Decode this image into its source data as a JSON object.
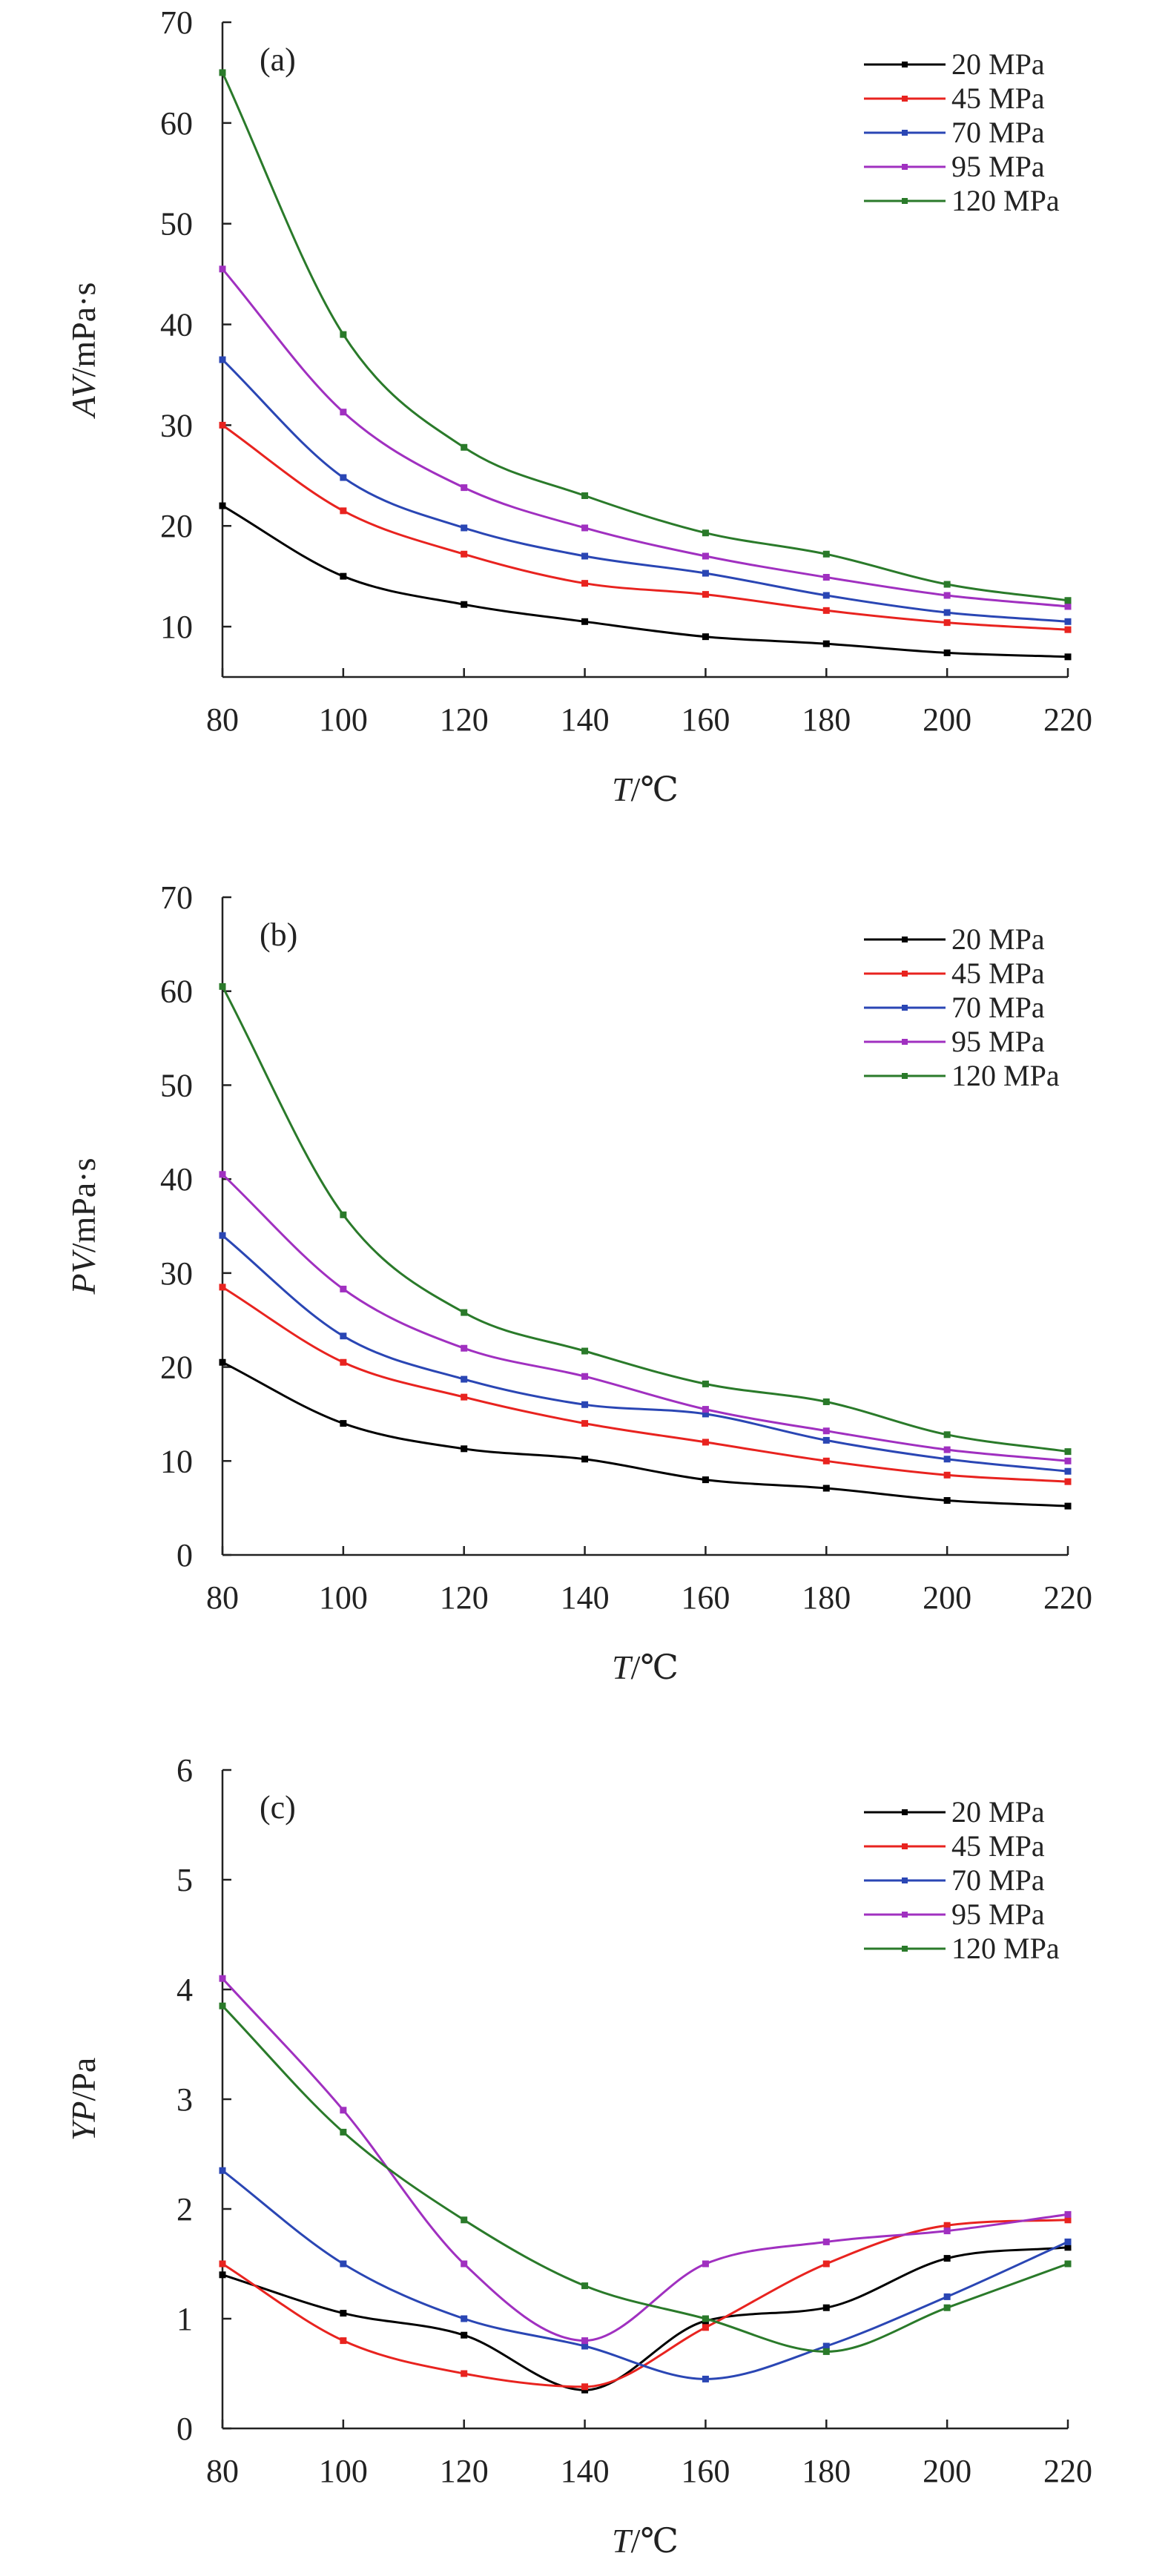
{
  "chart_data": [
    {
      "type": "line",
      "panel_label": "(a)",
      "ylabel_var": "AV",
      "ylabel_unit": "/mPa·s",
      "xlabel_var": "T",
      "xlabel_unit": "/℃",
      "x": [
        80,
        100,
        120,
        140,
        160,
        180,
        200,
        220
      ],
      "x_ticks": [
        "80",
        "100",
        "120",
        "140",
        "160",
        "180",
        "200",
        "220"
      ],
      "y_ticks": [
        "10",
        "20",
        "30",
        "40",
        "50",
        "60",
        "70"
      ],
      "xlim": [
        80,
        220
      ],
      "ylim": [
        5,
        70
      ],
      "legend_position": "top-right",
      "series": [
        {
          "name": "20 MPa",
          "color": "#000000",
          "values": [
            22,
            15,
            12.2,
            10.5,
            9,
            8.3,
            7.4,
            7
          ]
        },
        {
          "name": "45 MPa",
          "color": "#e8231f",
          "values": [
            30,
            21.5,
            17.2,
            14.3,
            13.2,
            11.6,
            10.4,
            9.7
          ]
        },
        {
          "name": "70 MPa",
          "color": "#2a46b4",
          "values": [
            36.5,
            24.8,
            19.8,
            17,
            15.3,
            13.1,
            11.4,
            10.5
          ]
        },
        {
          "name": "95 MPa",
          "color": "#a030c0",
          "values": [
            45.5,
            31.3,
            23.8,
            19.8,
            17,
            14.9,
            13.1,
            12
          ]
        },
        {
          "name": "120 MPa",
          "color": "#2a7a2a",
          "values": [
            65,
            39,
            27.8,
            23,
            19.3,
            17.2,
            14.2,
            12.6
          ]
        }
      ]
    },
    {
      "type": "line",
      "panel_label": "(b)",
      "ylabel_var": "PV",
      "ylabel_unit": "/mPa·s",
      "xlabel_var": "T",
      "xlabel_unit": "/℃",
      "x": [
        80,
        100,
        120,
        140,
        160,
        180,
        200,
        220
      ],
      "x_ticks": [
        "80",
        "100",
        "120",
        "140",
        "160",
        "180",
        "200",
        "220"
      ],
      "y_ticks": [
        "0",
        "10",
        "20",
        "30",
        "40",
        "50",
        "60",
        "70"
      ],
      "xlim": [
        80,
        220
      ],
      "ylim": [
        0,
        70
      ],
      "legend_position": "top-right",
      "series": [
        {
          "name": "20 MPa",
          "color": "#000000",
          "values": [
            20.5,
            14,
            11.3,
            10.2,
            8,
            7.1,
            5.8,
            5.2
          ]
        },
        {
          "name": "45 MPa",
          "color": "#e8231f",
          "values": [
            28.5,
            20.5,
            16.8,
            14,
            12,
            10,
            8.5,
            7.8
          ]
        },
        {
          "name": "70 MPa",
          "color": "#2a46b4",
          "values": [
            34,
            23.3,
            18.7,
            16,
            15,
            12.2,
            10.2,
            8.9
          ]
        },
        {
          "name": "95 MPa",
          "color": "#a030c0",
          "values": [
            40.5,
            28.3,
            22,
            19,
            15.5,
            13.2,
            11.2,
            10
          ]
        },
        {
          "name": "120 MPa",
          "color": "#2a7a2a",
          "values": [
            60.5,
            36.2,
            25.8,
            21.7,
            18.2,
            16.3,
            12.8,
            11
          ]
        }
      ]
    },
    {
      "type": "line",
      "panel_label": "(c)",
      "ylabel_var": "YP",
      "ylabel_unit": "/Pa",
      "xlabel_var": "T",
      "xlabel_unit": "/℃",
      "x": [
        80,
        100,
        120,
        140,
        160,
        180,
        200,
        220
      ],
      "x_ticks": [
        "80",
        "100",
        "120",
        "140",
        "160",
        "180",
        "200",
        "220"
      ],
      "y_ticks": [
        "0",
        "1",
        "2",
        "3",
        "4",
        "5",
        "6"
      ],
      "xlim": [
        80,
        220
      ],
      "ylim": [
        0,
        6
      ],
      "legend_position": "top-right",
      "series": [
        {
          "name": "20 MPa",
          "color": "#000000",
          "values": [
            1.4,
            1.05,
            0.85,
            0.35,
            0.98,
            1.1,
            1.55,
            1.65
          ]
        },
        {
          "name": "45 MPa",
          "color": "#e8231f",
          "values": [
            1.5,
            0.8,
            0.5,
            0.38,
            0.92,
            1.5,
            1.85,
            1.9
          ]
        },
        {
          "name": "70 MPa",
          "color": "#2a46b4",
          "values": [
            2.35,
            1.5,
            1.0,
            0.75,
            0.45,
            0.75,
            1.2,
            1.7
          ]
        },
        {
          "name": "95 MPa",
          "color": "#a030c0",
          "values": [
            4.1,
            2.9,
            1.5,
            0.8,
            1.5,
            1.7,
            1.8,
            1.95
          ]
        },
        {
          "name": "120 MPa",
          "color": "#2a7a2a",
          "values": [
            3.85,
            2.7,
            1.9,
            1.3,
            1.0,
            0.7,
            1.1,
            1.5
          ]
        }
      ]
    }
  ]
}
